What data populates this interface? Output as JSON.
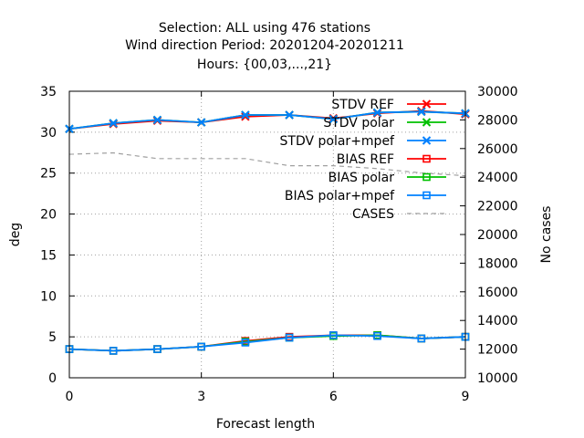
{
  "chart_data": {
    "type": "line",
    "title_lines": [
      "Selection: ALL using   476 stations",
      "Wind direction   Period: 20201204-20201211",
      "Hours: {00,03,...,21}"
    ],
    "xlabel": "Forecast length",
    "ylabel": "deg",
    "y2label": "No cases",
    "xlim": [
      0,
      9
    ],
    "ylim": [
      0,
      35
    ],
    "y2lim": [
      10000,
      30000
    ],
    "x_ticks": [
      0,
      3,
      6,
      9
    ],
    "y_ticks": [
      0,
      5,
      10,
      15,
      20,
      25,
      30,
      35
    ],
    "y2_ticks": [
      10000,
      12000,
      14000,
      16000,
      18000,
      20000,
      22000,
      24000,
      26000,
      28000,
      30000
    ],
    "grid": true,
    "legend_position": "top-right",
    "x": [
      0,
      1,
      2,
      3,
      4,
      5,
      6,
      7,
      8,
      9
    ],
    "series": [
      {
        "name": "STDV REF",
        "axis": "y",
        "color": "#ff0000",
        "marker": "x",
        "values": [
          30.4,
          31.0,
          31.4,
          31.2,
          31.9,
          32.1,
          31.7,
          32.3,
          32.6,
          32.2
        ]
      },
      {
        "name": "STDV polar",
        "axis": "y",
        "color": "#00c000",
        "marker": "x",
        "values": [
          30.4,
          31.1,
          31.5,
          31.2,
          32.1,
          32.1,
          31.6,
          32.4,
          32.5,
          32.3
        ]
      },
      {
        "name": "STDV polar+mpef",
        "axis": "y",
        "color": "#0080ff",
        "marker": "x",
        "values": [
          30.4,
          31.1,
          31.5,
          31.2,
          32.1,
          32.1,
          31.6,
          32.4,
          32.5,
          32.3
        ]
      },
      {
        "name": "BIAS REF",
        "axis": "y",
        "color": "#ff0000",
        "marker": "square",
        "values": [
          3.5,
          3.3,
          3.5,
          3.8,
          4.5,
          5.0,
          5.2,
          5.2,
          4.8,
          5.0
        ]
      },
      {
        "name": "BIAS polar",
        "axis": "y",
        "color": "#00c000",
        "marker": "square",
        "values": [
          3.5,
          3.3,
          3.5,
          3.8,
          4.4,
          4.9,
          5.1,
          5.2,
          4.8,
          5.0
        ]
      },
      {
        "name": "BIAS polar+mpef",
        "axis": "y",
        "color": "#0080ff",
        "marker": "square",
        "values": [
          3.5,
          3.3,
          3.5,
          3.8,
          4.3,
          4.9,
          5.2,
          5.1,
          4.8,
          5.0
        ]
      },
      {
        "name": "CASES",
        "axis": "y2",
        "color": "#a0a0a0",
        "marker": "none",
        "dashed": true,
        "values": [
          25600,
          25700,
          25300,
          25300,
          25300,
          24800,
          24800,
          24600,
          24300,
          24100
        ]
      }
    ]
  }
}
